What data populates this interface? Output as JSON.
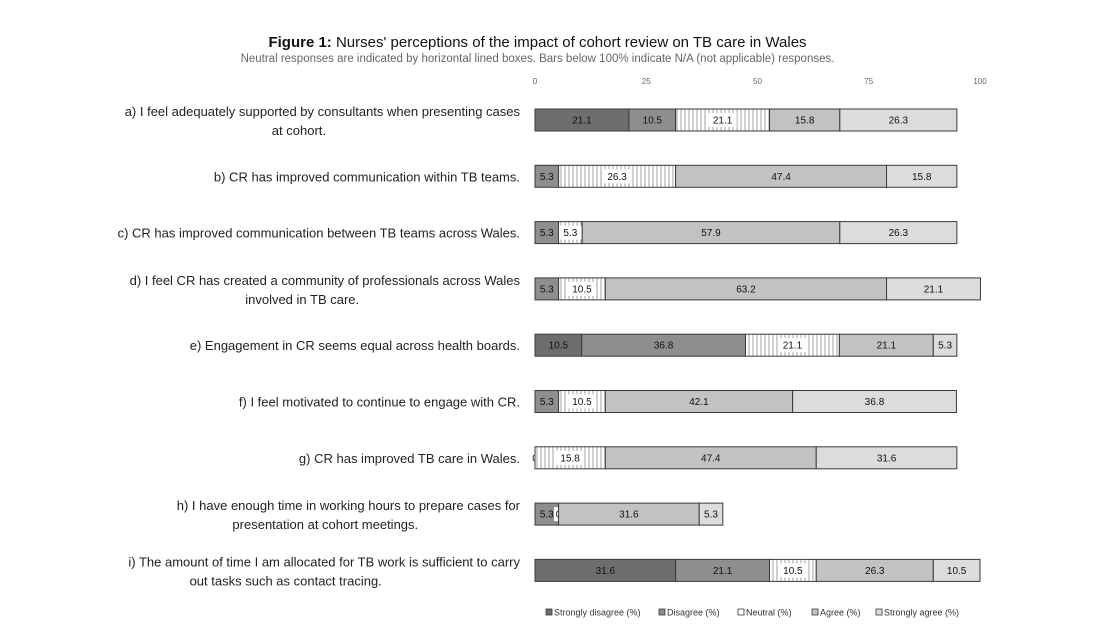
{
  "header": {
    "title_prefix": "Figure 1:",
    "title_text": " Nurses' perceptions of the impact of cohort review on TB care in Wales",
    "subtitle": "Neutral responses are indicated by horizontal lined boxes. Bars below 100% indicate N/A (not applicable) responses."
  },
  "chart_data": {
    "type": "bar",
    "orientation": "horizontal",
    "stacked": true,
    "title": "Figure 1: Nurses' perceptions of the impact of cohort review on TB care in Wales",
    "subtitle": "Neutral responses are indicated by horizontal lined boxes. Bars below 100% indicate N/A (not applicable) responses.",
    "xlim": [
      0,
      100
    ],
    "xticks": [
      0,
      25,
      50,
      75,
      100
    ],
    "legend_position": "bottom",
    "categories": [
      [
        "a) I feel adequately supported by consultants when presenting cases",
        "at cohort."
      ],
      [
        "b) CR has improved communication within TB teams."
      ],
      [
        "c) CR has improved communication between TB teams across Wales."
      ],
      [
        "d) I feel CR has created a community of professionals across Wales",
        "involved in TB care."
      ],
      [
        "e) Engagement in CR seems equal across health boards."
      ],
      [
        "f) I feel motivated to continue to engage with CR."
      ],
      [
        "g) CR has improved TB care in Wales."
      ],
      [
        "h) I have enough time in working hours to prepare cases for",
        "presentation at cohort meetings."
      ],
      [
        "i) The amount of time I am allocated for TB work is sufficient to carry",
        "out tasks such as contact tracing."
      ]
    ],
    "series": [
      {
        "name": "Strongly disagree (%)",
        "color": "#6e6e6e",
        "pattern": "solid",
        "values": [
          21.1,
          0,
          0,
          0,
          10.5,
          0,
          0,
          0,
          31.6
        ],
        "labels": [
          "21.1",
          "0",
          "0",
          "0",
          "10.5",
          "0",
          "0",
          "0",
          "31.6"
        ]
      },
      {
        "name": "Disagree (%)",
        "color": "#8e8e8e",
        "pattern": "solid",
        "values": [
          10.5,
          5.3,
          5.3,
          5.3,
          36.8,
          5.3,
          0,
          5.3,
          21.1
        ],
        "labels": [
          "10.5",
          "5.3",
          "5.3",
          "5.3",
          "36.8",
          "5.3",
          "0",
          "5.3",
          "21.1"
        ]
      },
      {
        "name": "Neutral (%)",
        "color": "#ffffff",
        "pattern": "lined",
        "values": [
          21.1,
          26.3,
          5.3,
          10.5,
          21.1,
          10.5,
          15.8,
          0,
          10.5
        ],
        "labels": [
          "21.1",
          "26.3",
          "5.3",
          "10.5",
          "21.1",
          "10.5",
          "15.8",
          "0",
          "10.5"
        ]
      },
      {
        "name": "Agree (%)",
        "color": "#c2c2c2",
        "pattern": "solid",
        "values": [
          15.8,
          47.4,
          57.9,
          63.2,
          21.1,
          42.1,
          47.4,
          31.6,
          26.3
        ],
        "labels": [
          "15.8",
          "47.4",
          "57.9",
          "63.2",
          "21.1",
          "42.1",
          "47.4",
          "31.6",
          "26.3"
        ]
      },
      {
        "name": "Strongly agree (%)",
        "color": "#dcdcdc",
        "pattern": "solid",
        "values": [
          26.3,
          15.8,
          26.3,
          21.1,
          5.3,
          36.8,
          31.6,
          5.3,
          10.5
        ],
        "labels": [
          "26.3",
          "15.8",
          "26.3",
          "21.1",
          "5.3",
          "36.8",
          "31.6",
          "5.3",
          "10.5"
        ]
      }
    ]
  }
}
